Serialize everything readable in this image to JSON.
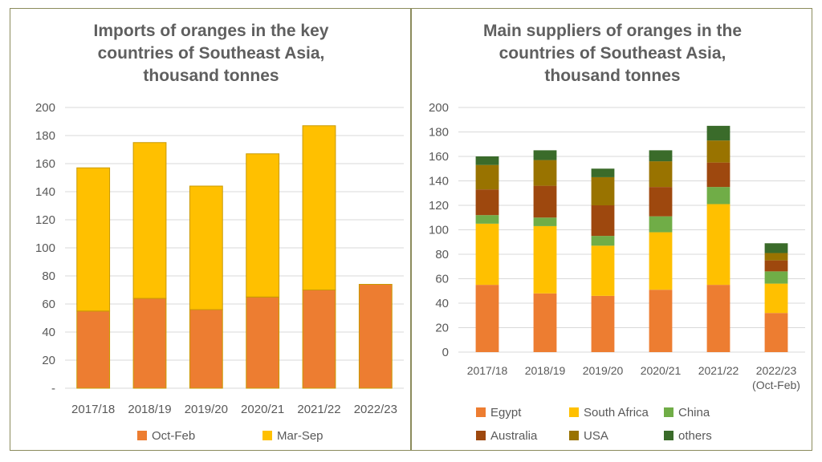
{
  "chart_data": [
    {
      "type": "bar",
      "stacked": true,
      "title": "Imports of oranges in the key countries of Southeast Asia, thousand tonnes",
      "title_lines": [
        "Imports of oranges in the key",
        "countries of Southeast Asia,",
        "thousand tonnes"
      ],
      "categories": [
        "2017/18",
        "2018/19",
        "2019/20",
        "2020/21",
        "2021/22",
        "2022/23"
      ],
      "series": [
        {
          "name": "Oct-Feb",
          "color": "#ed7d31",
          "values": [
            55,
            64,
            56,
            65,
            70,
            74
          ]
        },
        {
          "name": "Mar-Sep",
          "color": "#ffc000",
          "values": [
            102,
            111,
            88,
            102,
            117,
            0
          ]
        }
      ],
      "ylim": [
        0,
        200
      ],
      "yticks": [
        0,
        20,
        40,
        60,
        80,
        100,
        120,
        140,
        160,
        180,
        200
      ],
      "ytick_labels": [
        "-",
        "20",
        "40",
        "60",
        "80",
        "100",
        "120",
        "140",
        "160",
        "180",
        "200"
      ],
      "grid": true,
      "legend": "bottom"
    },
    {
      "type": "bar",
      "stacked": true,
      "title": "Main suppliers of oranges in the countries of Southeast Asia, thousand tonnes",
      "title_lines": [
        "Main suppliers of oranges in the",
        "countries of Southeast Asia,",
        "thousand tonnes"
      ],
      "categories": [
        "2017/18",
        "2018/19",
        "2019/20",
        "2020/21",
        "2021/22",
        "2022/23 (Oct-Feb)"
      ],
      "category_lines": [
        [
          "2017/18"
        ],
        [
          "2018/19"
        ],
        [
          "2019/20"
        ],
        [
          "2020/21"
        ],
        [
          "2021/22"
        ],
        [
          "2022/23",
          "(Oct-Feb)"
        ]
      ],
      "series": [
        {
          "name": "Egypt",
          "color": "#ed7d31",
          "values": [
            55,
            48,
            46,
            51,
            55,
            32
          ]
        },
        {
          "name": "South Africa",
          "color": "#ffc000",
          "values": [
            50,
            55,
            41,
            47,
            66,
            24
          ]
        },
        {
          "name": "China",
          "color": "#70ad47",
          "values": [
            7,
            7,
            8,
            13,
            14,
            10
          ]
        },
        {
          "name": "Australia",
          "color": "#9e480e",
          "values": [
            21,
            26,
            25,
            24,
            20,
            9
          ]
        },
        {
          "name": "USA",
          "color": "#997300",
          "values": [
            20,
            21,
            23,
            21,
            18,
            6
          ]
        },
        {
          "name": "others",
          "color": "#3a6b2a",
          "values": [
            7,
            8,
            7,
            9,
            12,
            8
          ]
        }
      ],
      "ylim": [
        0,
        200
      ],
      "yticks": [
        0,
        20,
        40,
        60,
        80,
        100,
        120,
        140,
        160,
        180,
        200
      ],
      "grid": true,
      "legend": "bottom"
    }
  ]
}
